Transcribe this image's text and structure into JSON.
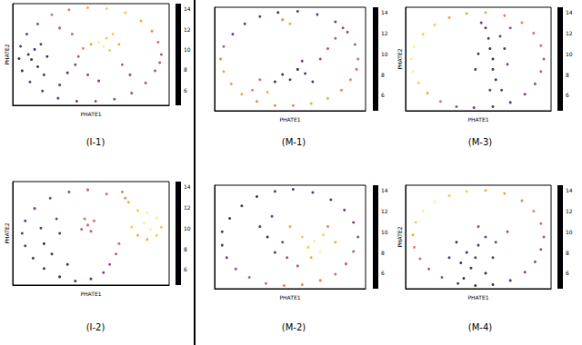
{
  "chart_data": [
    {
      "type": "scatter",
      "title": "(I-1)",
      "xlabel": "PHATE1",
      "ylabel": "PHATE2",
      "xlim": [
        0,
        100
      ],
      "ylim": [
        0,
        100
      ],
      "tick_labels": false,
      "colorbar": {
        "range": [
          4.5,
          14.5
        ],
        "ticks": [
          6,
          8,
          10,
          12,
          14
        ]
      },
      "x": [
        95,
        93,
        89,
        82,
        72,
        60,
        48,
        36,
        25,
        16,
        9,
        5,
        4,
        6,
        11,
        19,
        29,
        41,
        53,
        65,
        76,
        85,
        91,
        94,
        12,
        14,
        16,
        20,
        18,
        10,
        22,
        55,
        60,
        58,
        64,
        50,
        45,
        62,
        68,
        40,
        35,
        48,
        55,
        30,
        42,
        70,
        75,
        38,
        30
      ],
      "y": [
        50,
        62,
        73,
        83,
        91,
        95,
        96,
        94,
        89,
        80,
        70,
        58,
        46,
        34,
        23,
        14,
        7,
        4,
        4,
        6,
        12,
        22,
        34,
        42,
        45,
        55,
        38,
        30,
        60,
        50,
        48,
        62,
        66,
        58,
        70,
        60,
        56,
        54,
        60,
        40,
        32,
        30,
        24,
        20,
        48,
        40,
        30,
        70,
        76
      ],
      "color_values": [
        9,
        10,
        11,
        12,
        13,
        13,
        12,
        11,
        10,
        8,
        7,
        6,
        5,
        5,
        6,
        6,
        7,
        7,
        8,
        8,
        8,
        9,
        9,
        9,
        5,
        6,
        5,
        6,
        6,
        5,
        5,
        14,
        13,
        14,
        13,
        12,
        11,
        13,
        12,
        7,
        6,
        8,
        7,
        6,
        9,
        9,
        8,
        10,
        9
      ]
    },
    {
      "type": "scatter",
      "title": "(I-2)",
      "xlabel": "PHATE1",
      "ylabel": "PHATE2",
      "xlim": [
        0,
        100
      ],
      "ylim": [
        0,
        100
      ],
      "tick_labels": false,
      "colorbar": {
        "range": [
          4.5,
          14.5
        ],
        "ticks": [
          6,
          8,
          10,
          12,
          14
        ]
      },
      "x": [
        60,
        48,
        36,
        24,
        14,
        8,
        6,
        8,
        13,
        20,
        30,
        40,
        50,
        58,
        62,
        66,
        70,
        74,
        80,
        86,
        92,
        95,
        92,
        86,
        80,
        76,
        84,
        88,
        68,
        72,
        48,
        46,
        50,
        44,
        52,
        20,
        25,
        18,
        30,
        35,
        28
      ],
      "y": [
        88,
        92,
        90,
        84,
        74,
        62,
        50,
        38,
        26,
        16,
        8,
        4,
        6,
        12,
        20,
        30,
        90,
        80,
        72,
        70,
        65,
        56,
        48,
        44,
        48,
        56,
        60,
        54,
        40,
        84,
        58,
        64,
        52,
        54,
        62,
        40,
        30,
        55,
        50,
        20,
        64
      ],
      "color_values": [
        10,
        9,
        8,
        7,
        7,
        6,
        6,
        6,
        6,
        5,
        5,
        5,
        6,
        7,
        8,
        9,
        11,
        12,
        13,
        14,
        14,
        13,
        13,
        12,
        12,
        13,
        14,
        14,
        10,
        11,
        10,
        10,
        9,
        9,
        10,
        5,
        5,
        6,
        6,
        5,
        7
      ]
    },
    {
      "type": "scatter",
      "title": "(M-1)",
      "xlabel": "PHATE1",
      "xlim": [
        0,
        100
      ],
      "ylim": [
        0,
        100
      ],
      "tick_labels": false,
      "colorbar": {
        "range": [
          4.5,
          14.5
        ],
        "ticks": [
          6,
          8,
          10,
          12,
          14
        ]
      },
      "x": [
        95,
        93,
        88,
        80,
        68,
        55,
        42,
        30,
        20,
        12,
        6,
        4,
        6,
        11,
        18,
        28,
        40,
        52,
        64,
        75,
        84,
        90,
        94,
        45,
        50,
        45,
        50,
        55,
        60,
        40,
        65,
        58,
        70,
        75,
        80,
        30,
        25,
        35,
        85
      ],
      "y": [
        50,
        64,
        76,
        86,
        93,
        96,
        95,
        91,
        84,
        74,
        62,
        50,
        38,
        26,
        16,
        9,
        5,
        5,
        7,
        12,
        20,
        30,
        40,
        88,
        84,
        35,
        30,
        40,
        36,
        28,
        28,
        48,
        50,
        60,
        70,
        30,
        20,
        18,
        80
      ],
      "color_values": [
        10,
        9,
        8,
        7,
        6,
        6,
        5,
        6,
        6,
        7,
        9,
        11,
        12,
        12,
        12,
        11,
        11,
        11,
        12,
        12,
        11,
        11,
        10,
        11,
        12,
        5,
        6,
        5,
        6,
        5,
        6,
        7,
        8,
        9,
        9,
        10,
        11,
        12,
        8
      ]
    },
    {
      "type": "scatter",
      "title": "(M-3)",
      "xlabel": "PHATE1",
      "ylabel": "PHATE2",
      "xlim": [
        0,
        100
      ],
      "ylim": [
        0,
        100
      ],
      "tick_labels": false,
      "colorbar": {
        "range": [
          4.5,
          14.5
        ],
        "ticks": [
          6,
          8,
          10,
          12,
          14
        ]
      },
      "x": [
        95,
        93,
        88,
        80,
        68,
        55,
        42,
        30,
        20,
        12,
        6,
        4,
        5,
        9,
        15,
        24,
        35,
        47,
        60,
        72,
        82,
        89,
        93,
        55,
        57,
        58,
        60,
        60,
        62,
        58,
        65,
        68,
        70,
        50,
        48,
        66,
        52,
        72
      ],
      "y": [
        50,
        63,
        75,
        85,
        92,
        95,
        94,
        90,
        83,
        74,
        62,
        50,
        38,
        27,
        17,
        9,
        4,
        3,
        4,
        8,
        16,
        26,
        38,
        80,
        70,
        60,
        50,
        40,
        30,
        20,
        72,
        60,
        45,
        55,
        40,
        20,
        85,
        80
      ],
      "color_values": [
        9,
        10,
        10,
        11,
        11,
        12,
        12,
        12,
        13,
        13,
        14,
        14,
        14,
        13,
        12,
        10,
        8,
        7,
        6,
        6,
        7,
        8,
        9,
        6,
        6,
        5,
        5,
        6,
        5,
        6,
        7,
        6,
        7,
        5,
        6,
        6,
        7,
        8
      ]
    },
    {
      "type": "scatter",
      "title": "(M-2)",
      "xlabel": "PHATE1",
      "xlim": [
        0,
        100
      ],
      "ylim": [
        0,
        100
      ],
      "tick_labels": false,
      "colorbar": {
        "range": [
          4.5,
          14.5
        ],
        "ticks": [
          6,
          8,
          10,
          12,
          14
        ]
      },
      "x": [
        95,
        92,
        86,
        77,
        65,
        52,
        40,
        28,
        18,
        10,
        5,
        5,
        8,
        14,
        23,
        34,
        46,
        58,
        70,
        80,
        87,
        92,
        62,
        66,
        70,
        58,
        72,
        64,
        50,
        45,
        40,
        35,
        48,
        55,
        30,
        38,
        80,
        75
      ],
      "y": [
        50,
        64,
        76,
        86,
        93,
        96,
        94,
        89,
        80,
        68,
        55,
        42,
        30,
        19,
        11,
        5,
        3,
        4,
        8,
        14,
        24,
        36,
        40,
        46,
        36,
        50,
        52,
        30,
        60,
        45,
        35,
        50,
        30,
        22,
        60,
        70,
        45,
        60
      ],
      "color_values": [
        8,
        7,
        7,
        6,
        6,
        6,
        6,
        5,
        5,
        5,
        5,
        6,
        7,
        8,
        9,
        10,
        11,
        11,
        11,
        10,
        9,
        9,
        13,
        14,
        14,
        13,
        13,
        12,
        12,
        7,
        6,
        5,
        8,
        9,
        6,
        7,
        12,
        11
      ]
    },
    {
      "type": "scatter",
      "title": "(M-4)",
      "xlabel": "PHATE1",
      "ylabel": "PHATE2",
      "xlim": [
        0,
        100
      ],
      "ylim": [
        0,
        100
      ],
      "tick_labels": false,
      "colorbar": {
        "range": [
          4.5,
          14.5
        ],
        "ticks": [
          6,
          8,
          10,
          12,
          14
        ]
      },
      "x": [
        95,
        93,
        88,
        80,
        68,
        55,
        42,
        30,
        20,
        12,
        7,
        5,
        6,
        10,
        16,
        25,
        36,
        48,
        60,
        72,
        82,
        89,
        93,
        40,
        45,
        48,
        50,
        55,
        42,
        38,
        55,
        60,
        62,
        35,
        30,
        70,
        50
      ],
      "y": [
        50,
        63,
        75,
        85,
        92,
        95,
        94,
        90,
        84,
        75,
        64,
        52,
        40,
        29,
        19,
        11,
        5,
        3,
        4,
        8,
        16,
        26,
        38,
        10,
        20,
        30,
        42,
        50,
        35,
        25,
        15,
        30,
        45,
        45,
        30,
        55,
        60
      ],
      "color_values": [
        9,
        10,
        11,
        11,
        12,
        12,
        13,
        13,
        14,
        14,
        13,
        12,
        11,
        10,
        9,
        8,
        6,
        5,
        5,
        6,
        7,
        8,
        8,
        5,
        5,
        6,
        6,
        7,
        5,
        5,
        5,
        6,
        7,
        5,
        6,
        8,
        8
      ]
    }
  ]
}
